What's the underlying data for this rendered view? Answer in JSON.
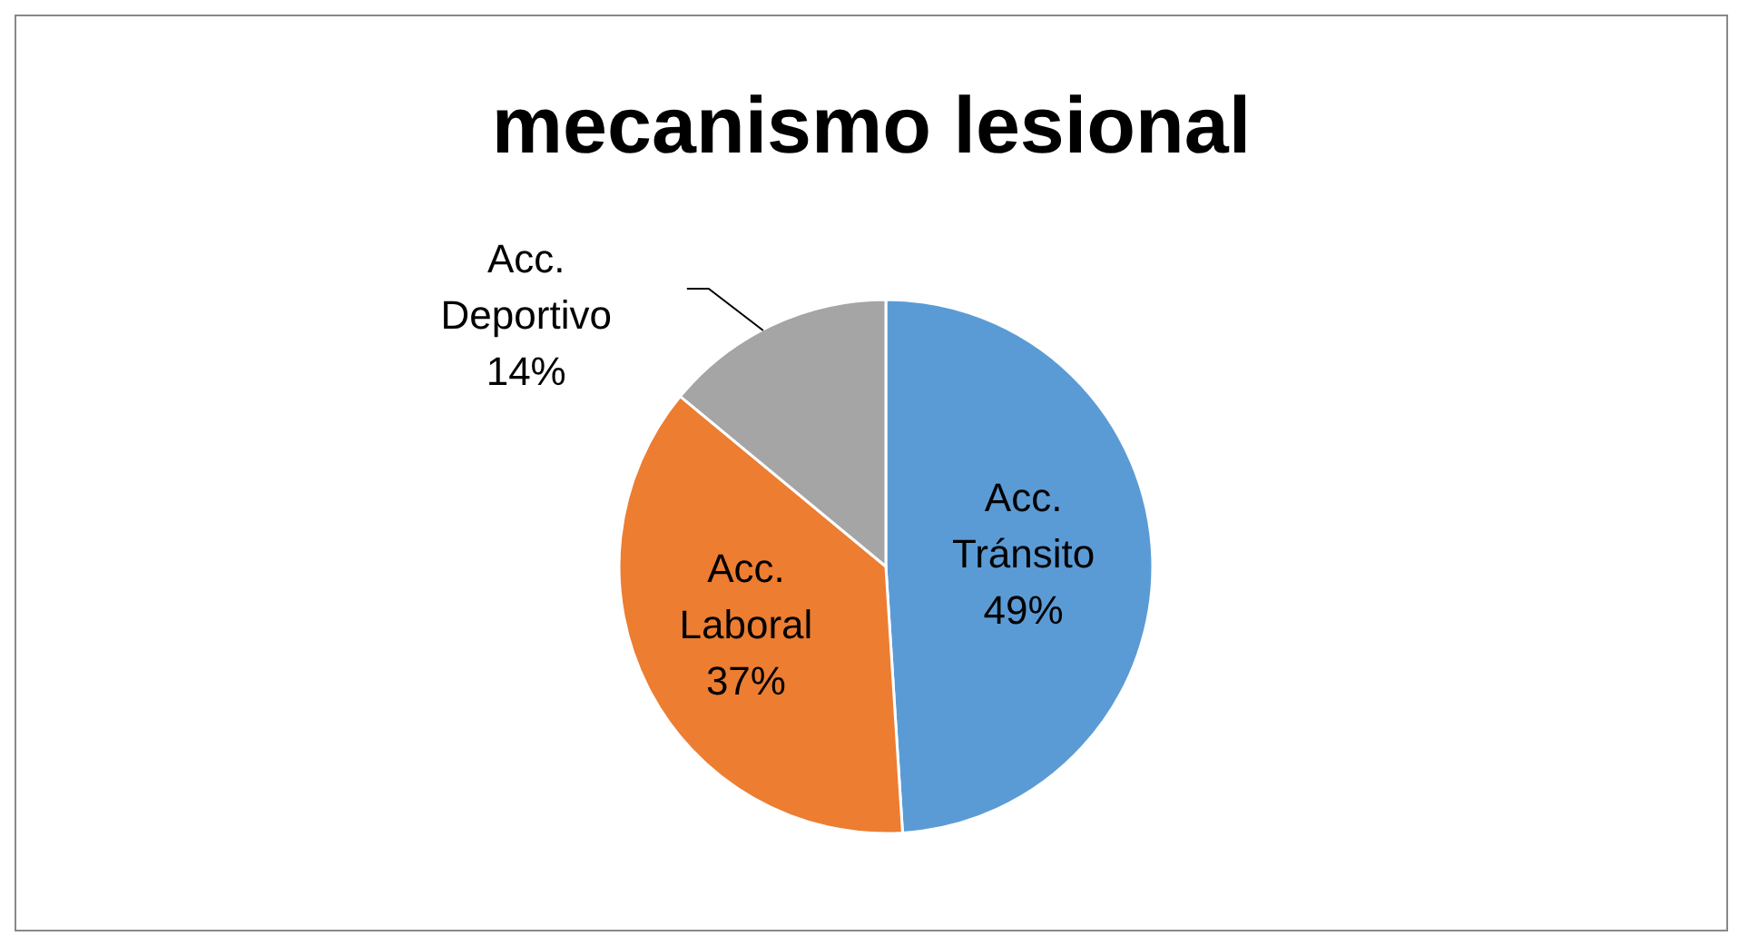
{
  "chart_data": {
    "type": "pie",
    "title": "mecanismo lesional",
    "categories": [
      "Acc. Tránsito",
      "Acc. Laboral",
      "Acc. Deportivo"
    ],
    "values": [
      49,
      37,
      14
    ],
    "colors": [
      "#5b9bd5",
      "#ed7d31",
      "#a5a5a5"
    ],
    "value_labels": [
      "49%",
      "37%",
      "14%"
    ]
  }
}
